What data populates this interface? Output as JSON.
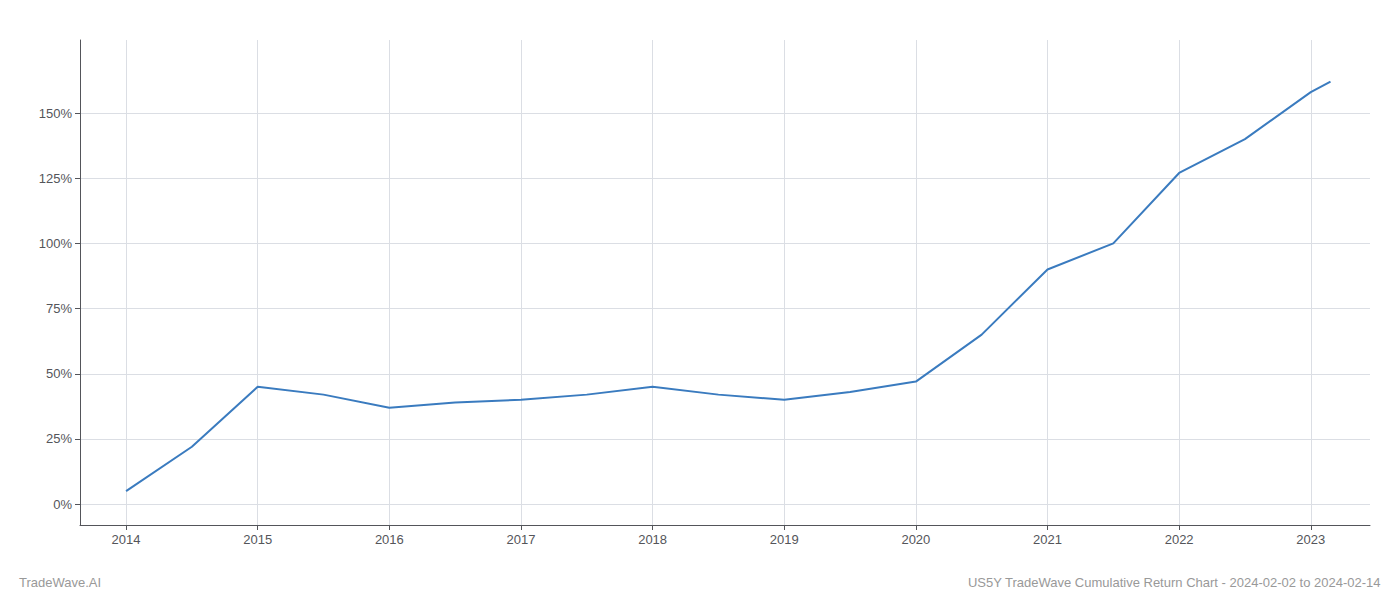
{
  "chart_data": {
    "type": "line",
    "title": "US5Y TradeWave Cumulative Return Chart - 2024-02-02 to 2024-02-14",
    "annotations": [
      "TradeWave.AI"
    ],
    "color": "#3a7bbf",
    "grid": true,
    "x": [
      2014.0,
      2014.5,
      2015.0,
      2015.5,
      2016.0,
      2016.5,
      2017.0,
      2017.5,
      2018.0,
      2018.5,
      2019.0,
      2019.5,
      2020.0,
      2020.5,
      2021.0,
      2021.5,
      2022.0,
      2022.5,
      2023.0,
      2023.15
    ],
    "values": [
      5,
      22,
      45,
      42,
      37,
      39,
      40,
      42,
      45,
      42,
      40,
      43,
      47,
      65,
      90,
      100,
      127,
      140,
      158,
      162
    ],
    "xlim": [
      2013.65,
      2023.45
    ],
    "xticks": [
      2014,
      2015,
      2016,
      2017,
      2018,
      2019,
      2020,
      2021,
      2022,
      2023
    ],
    "ylim": [
      -8,
      178
    ],
    "yticks": [
      {
        "value": 0,
        "label": "0%"
      },
      {
        "value": 25,
        "label": "25%"
      },
      {
        "value": 50,
        "label": "50%"
      },
      {
        "value": 75,
        "label": "75%"
      },
      {
        "value": 100,
        "label": "100%"
      },
      {
        "value": 125,
        "label": "125%"
      },
      {
        "value": 150,
        "label": "150%"
      }
    ]
  }
}
